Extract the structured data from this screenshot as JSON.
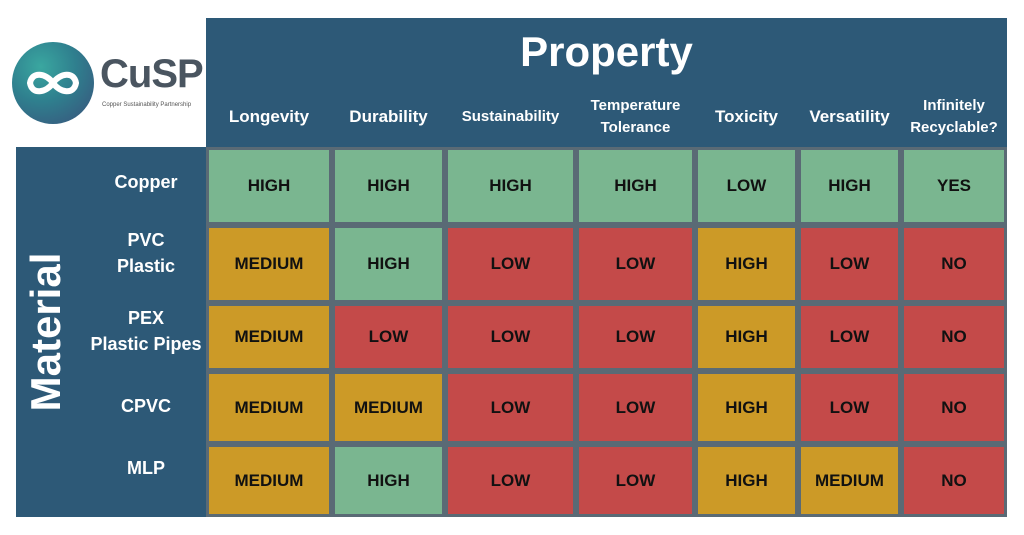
{
  "logo": {
    "name": "CuSP",
    "subtitle": "Copper Sustainability Partnership"
  },
  "title": "Property",
  "side_label": "Material",
  "columns": [
    "Longevity",
    "Durability",
    "Sustainability",
    "Temperature\nTolerance",
    "Toxicity",
    "Versatility",
    "Infinitely\nRecyclable?"
  ],
  "rows": [
    {
      "material": "Copper",
      "values": [
        "HIGH",
        "HIGH",
        "HIGH",
        "HIGH",
        "LOW",
        "HIGH",
        "YES"
      ]
    },
    {
      "material": "PVC\nPlastic",
      "values": [
        "MEDIUM",
        "HIGH",
        "LOW",
        "LOW",
        "HIGH",
        "LOW",
        "NO"
      ]
    },
    {
      "material": "PEX\nPlastic Pipes",
      "values": [
        "MEDIUM",
        "LOW",
        "LOW",
        "LOW",
        "HIGH",
        "LOW",
        "NO"
      ]
    },
    {
      "material": "CPVC",
      "values": [
        "MEDIUM",
        "MEDIUM",
        "LOW",
        "LOW",
        "HIGH",
        "LOW",
        "NO"
      ]
    },
    {
      "material": "MLP",
      "values": [
        "MEDIUM",
        "HIGH",
        "LOW",
        "LOW",
        "HIGH",
        "MEDIUM",
        "NO"
      ]
    }
  ],
  "rating_colors": {
    "good": "#7ab690",
    "medium": "#cc9a27",
    "bad": "#c44a49"
  },
  "cell_ratings": [
    [
      "good",
      "good",
      "good",
      "good",
      "good",
      "good",
      "good"
    ],
    [
      "medium",
      "good",
      "bad",
      "bad",
      "medium",
      "bad",
      "bad"
    ],
    [
      "medium",
      "bad",
      "bad",
      "bad",
      "medium",
      "bad",
      "bad"
    ],
    [
      "medium",
      "medium",
      "bad",
      "bad",
      "medium",
      "bad",
      "bad"
    ],
    [
      "medium",
      "good",
      "bad",
      "bad",
      "medium",
      "medium",
      "bad"
    ]
  ]
}
